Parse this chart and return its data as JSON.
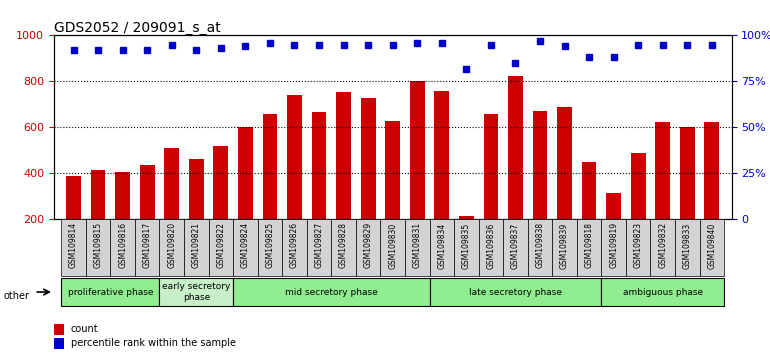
{
  "title": "GDS2052 / 209091_s_at",
  "samples": [
    "GSM109814",
    "GSM109815",
    "GSM109816",
    "GSM109817",
    "GSM109820",
    "GSM109821",
    "GSM109822",
    "GSM109824",
    "GSM109825",
    "GSM109826",
    "GSM109827",
    "GSM109828",
    "GSM109829",
    "GSM109830",
    "GSM109831",
    "GSM109834",
    "GSM109835",
    "GSM109836",
    "GSM109837",
    "GSM109838",
    "GSM109839",
    "GSM109818",
    "GSM109819",
    "GSM109823",
    "GSM109832",
    "GSM109833",
    "GSM109840"
  ],
  "counts": [
    390,
    415,
    405,
    435,
    510,
    465,
    520,
    600,
    660,
    740,
    665,
    755,
    728,
    630,
    800,
    760,
    215,
    660,
    825,
    670,
    690,
    450,
    315,
    490,
    625,
    600,
    625
  ],
  "percentile": [
    92,
    92,
    92,
    92,
    95,
    92,
    93,
    94,
    96,
    95,
    95,
    95,
    95,
    95,
    96,
    96,
    82,
    95,
    85,
    97,
    94,
    88,
    88,
    95,
    95,
    95,
    95
  ],
  "bar_color": "#cc0000",
  "dot_color": "#0000cc",
  "ylim_left": [
    200,
    1000
  ],
  "ylim_right": [
    0,
    100
  ],
  "yticks_left": [
    200,
    400,
    600,
    800,
    1000
  ],
  "yticks_right": [
    0,
    25,
    50,
    75,
    100
  ],
  "phases": [
    {
      "label": "proliferative phase",
      "start": 0,
      "end": 3,
      "color": "#90ee90"
    },
    {
      "label": "early secretory\nphase",
      "start": 4,
      "end": 6,
      "color": "#c8f0c8"
    },
    {
      "label": "mid secretory phase",
      "start": 7,
      "end": 14,
      "color": "#90ee90"
    },
    {
      "label": "late secretory phase",
      "start": 15,
      "end": 21,
      "color": "#90ee90"
    },
    {
      "label": "ambiguous phase",
      "start": 22,
      "end": 26,
      "color": "#90ee90"
    }
  ],
  "other_label": "other",
  "legend_count_label": "count",
  "legend_pct_label": "percentile rank within the sample",
  "bg_color": "#d3d3d3",
  "plot_bg": "#ffffff"
}
